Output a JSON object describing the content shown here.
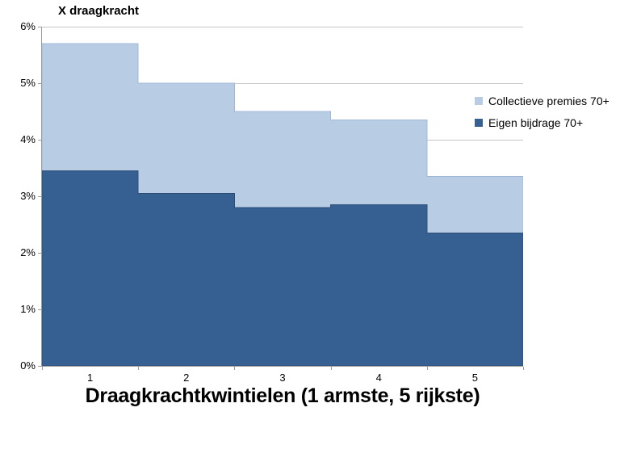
{
  "chart": {
    "title": "X draagkracht",
    "x_axis_title": "Draagkrachtkwintielen (1 armste, 5 rijkste)"
  },
  "legend": {
    "items": [
      {
        "label": "Collectieve premies 70+",
        "color": "#B8CCE4"
      },
      {
        "label": "Eigen bijdrage 70+",
        "color": "#366092"
      }
    ]
  },
  "colors": {
    "background": "#FFFFFF",
    "light_series_fill": "#B8CCE4",
    "light_series_border": "#A0B8D8",
    "dark_series_fill": "#366092",
    "dark_series_border": "#2D4E76",
    "gridline": "#C6C6C6",
    "axis": "#9C9C9C",
    "text": "#000000"
  },
  "chart_data": {
    "type": "area",
    "subtype": "stacked-step",
    "title": "X draagkracht",
    "xlabel": "Draagkrachtkwintielen (1 armste, 5 rijkste)",
    "ylabel": "X draagkracht",
    "categories": [
      "1",
      "2",
      "3",
      "4",
      "5"
    ],
    "series": [
      {
        "name": "Eigen bijdrage 70+",
        "color": "#366092",
        "stroke": "#2D4E76",
        "values": [
          3.45,
          3.05,
          2.8,
          2.85,
          2.35
        ]
      },
      {
        "name": "Collectieve premies 70+",
        "color": "#B8CCE4",
        "stroke": "#A0B8D8",
        "values": [
          2.25,
          1.95,
          1.7,
          1.5,
          1.0
        ]
      }
    ],
    "stacked_totals": [
      5.7,
      5.0,
      4.5,
      4.35,
      3.35
    ],
    "ylim": [
      0,
      6
    ],
    "y_ticks": [
      "0%",
      "1%",
      "2%",
      "3%",
      "4%",
      "5%",
      "6%"
    ],
    "grid": true,
    "legend_position": "inside-right"
  }
}
